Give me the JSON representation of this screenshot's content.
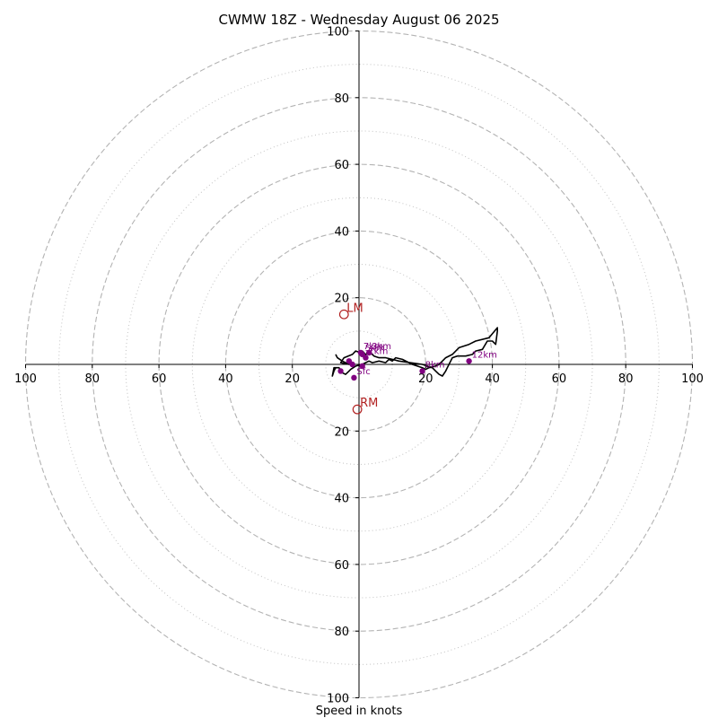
{
  "chart_data": {
    "type": "hodograph",
    "title": "CWMW 18Z - Wednesday August 06 2025",
    "xlabel": "Speed in knots",
    "ylabel": "",
    "xlim": [
      -100,
      100
    ],
    "ylim": [
      -100,
      100
    ],
    "rings_major": [
      20,
      40,
      60,
      80,
      100
    ],
    "rings_minor": [
      10,
      30,
      50,
      70,
      90
    ],
    "x_ticks": [
      {
        "value": -100,
        "label": "100"
      },
      {
        "value": -80,
        "label": "80"
      },
      {
        "value": -60,
        "label": "60"
      },
      {
        "value": -40,
        "label": "40"
      },
      {
        "value": -20,
        "label": "20"
      },
      {
        "value": 20,
        "label": "20"
      },
      {
        "value": 40,
        "label": "40"
      },
      {
        "value": 60,
        "label": "60"
      },
      {
        "value": 80,
        "label": "80"
      },
      {
        "value": 100,
        "label": "100"
      }
    ],
    "y_ticks": [
      {
        "value": 100,
        "label": "100"
      },
      {
        "value": 80,
        "label": "80"
      },
      {
        "value": 60,
        "label": "60"
      },
      {
        "value": 40,
        "label": "40"
      },
      {
        "value": 20,
        "label": "20"
      },
      {
        "value": -20,
        "label": "20"
      },
      {
        "value": -40,
        "label": "40"
      },
      {
        "value": -60,
        "label": "60"
      },
      {
        "value": -80,
        "label": "80"
      },
      {
        "value": -100,
        "label": "100"
      }
    ],
    "trace": {
      "u": [
        -7,
        -6.5,
        -5,
        -4,
        -3,
        -5.5,
        -4.5,
        -2,
        -1,
        0.5,
        1,
        2,
        3,
        4,
        4.5,
        6,
        8,
        10,
        12,
        19,
        22,
        23,
        24,
        25,
        26,
        26.5,
        28,
        29.5,
        32,
        34,
        35,
        37,
        38.5,
        40,
        41,
        41.5,
        41.5,
        39,
        35,
        33,
        30,
        28,
        26,
        25,
        24,
        23,
        21,
        20,
        19,
        16,
        13,
        11,
        10,
        9,
        8,
        6,
        4,
        3,
        2,
        1,
        -1,
        -2.5,
        -3,
        -4,
        -5,
        -6,
        -7.5,
        -8,
        -7.5,
        -7,
        -7
      ],
      "v": [
        3,
        2,
        1,
        0.5,
        0,
        0.5,
        2,
        3,
        4,
        3.5,
        4,
        3,
        3.5,
        3,
        2.5,
        2,
        2,
        1.5,
        1,
        0,
        -1,
        -2,
        -3,
        -3.5,
        -2,
        -1,
        2,
        2.5,
        2.5,
        3,
        4,
        4.5,
        7,
        7,
        6,
        10,
        11,
        8,
        7,
        6,
        5,
        3,
        2,
        1,
        0,
        -0.5,
        -1,
        -1.5,
        -1,
        0,
        1.5,
        2,
        1,
        1.5,
        0.5,
        1,
        0.5,
        1,
        0.5,
        0,
        -0.5,
        -1.5,
        -2,
        -3,
        -2.5,
        -1,
        -1,
        -3.5,
        -2,
        -1,
        -1
      ]
    },
    "markers": [
      {
        "label": "Sfc",
        "u": -1.5,
        "v": -4
      },
      {
        "label": "",
        "u": -5.5,
        "v": -2
      },
      {
        "label": "",
        "u": -3,
        "v": 1
      },
      {
        "label": "",
        "u": -2,
        "v": 0
      },
      {
        "label": "",
        "u": 1,
        "v": -0.5
      },
      {
        "label": "1km",
        "u": 2,
        "v": 2
      },
      {
        "label": "3km",
        "u": 3,
        "v": 3.5
      },
      {
        "label": "5km",
        "u": 1,
        "v": 3
      },
      {
        "label": "7km",
        "u": 0.5,
        "v": 3.5
      },
      {
        "label": "8km",
        "u": 19,
        "v": -2
      },
      {
        "label": "12km",
        "u": 33,
        "v": 1
      }
    ],
    "storm_motion": [
      {
        "label": "LM",
        "u": -4.5,
        "v": 15
      },
      {
        "label": "RM",
        "u": -0.5,
        "v": -13.5
      }
    ],
    "colors": {
      "trace": "#000000",
      "markers": "#800080",
      "storm_motion": "#b22222",
      "rings": "#b3b3b3"
    }
  }
}
